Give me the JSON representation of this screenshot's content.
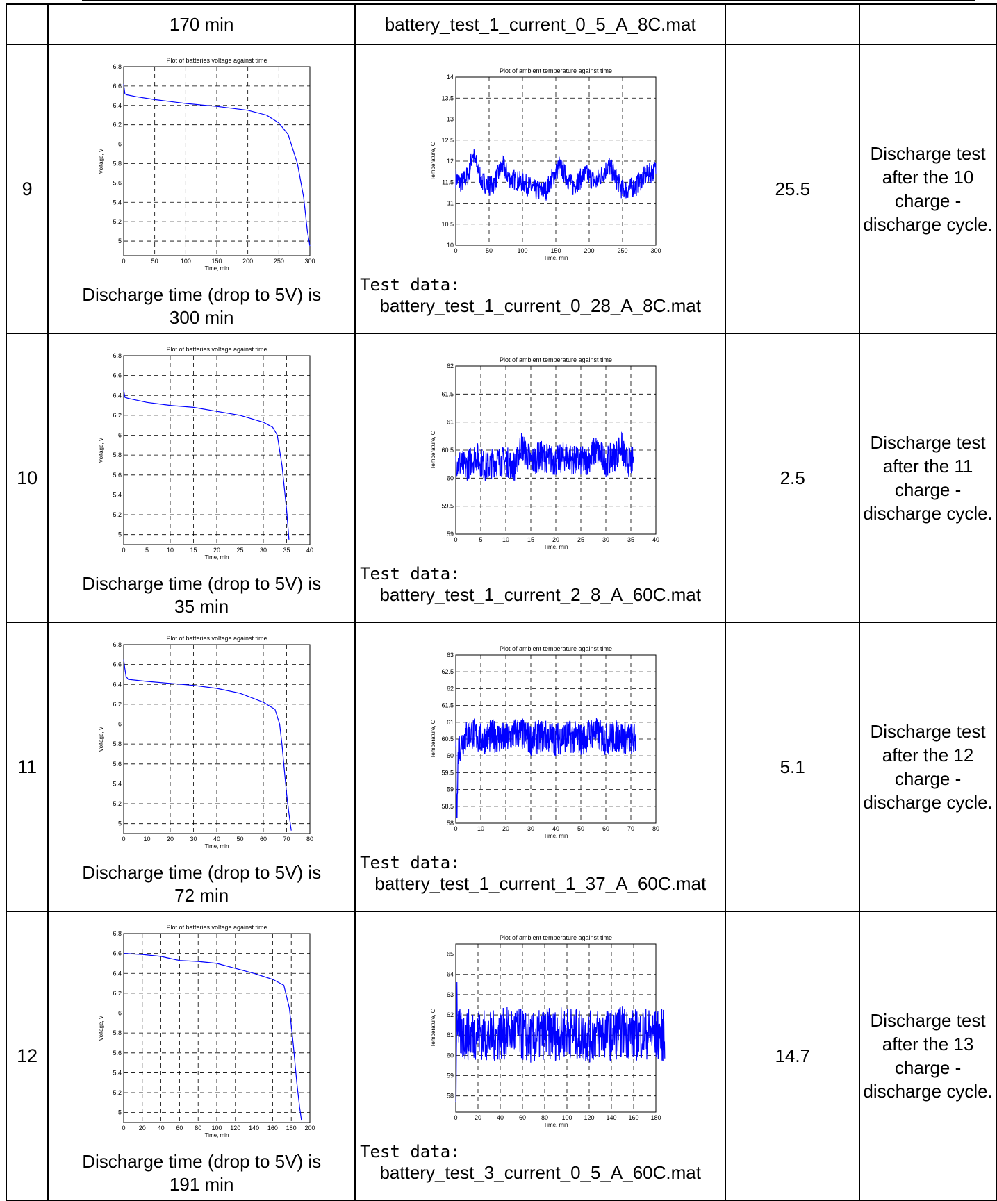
{
  "top_row": {
    "discharge_caption": "170 min",
    "test_file": "battery_test_1_current_0_5_A_8C.mat"
  },
  "rows": [
    {
      "number": "9",
      "voltage_chart": {
        "title": "Plot of batteries voltage against time",
        "xlabel": "Time, min",
        "ylabel": "Voltage, V",
        "xticks": [
          "0",
          "50",
          "100",
          "150",
          "200",
          "250",
          "300"
        ],
        "yticks": [
          "5",
          "5.2",
          "5.4",
          "5.6",
          "5.8",
          "6",
          "6.2",
          "6.4",
          "6.6",
          "6.8"
        ]
      },
      "discharge_label": "Discharge time (drop to 5V) is",
      "discharge_value": "300 min",
      "temp_chart": {
        "title": "Plot of ambient temperature against time",
        "xlabel": "Time, min",
        "ylabel": "Temperature, C",
        "xticks": [
          "0",
          "50",
          "100",
          "150",
          "200",
          "250",
          "300"
        ],
        "yticks": [
          "10",
          "10.5",
          "11",
          "11.5",
          "12",
          "12.5",
          "13",
          "13.5",
          "14"
        ]
      },
      "test_data_label": "Test data:",
      "test_file": "battery_test_1_current_0_28_A_8C.mat",
      "value": "25.5",
      "note": "Discharge test after the 10 charge - discharge cycle."
    },
    {
      "number": "10",
      "voltage_chart": {
        "title": "Plot of batteries voltage against time",
        "xlabel": "Time, min",
        "ylabel": "Voltage, V",
        "xticks": [
          "0",
          "5",
          "10",
          "15",
          "20",
          "25",
          "30",
          "35",
          "40"
        ],
        "yticks": [
          "5",
          "5.2",
          "5.4",
          "5.6",
          "5.8",
          "6",
          "6.2",
          "6.4",
          "6.6",
          "6.8"
        ]
      },
      "discharge_label": "Discharge time (drop to 5V) is",
      "discharge_value": "35 min",
      "temp_chart": {
        "title": "Plot of ambient temperature against time",
        "xlabel": "Time, min",
        "ylabel": "Temperature, C",
        "xticks": [
          "0",
          "5",
          "10",
          "15",
          "20",
          "25",
          "30",
          "35",
          "40"
        ],
        "yticks": [
          "59",
          "59.5",
          "60",
          "60.5",
          "61",
          "61.5",
          "62"
        ]
      },
      "test_data_label": "Test data:",
      "test_file": "battery_test_1_current_2_8_A_60C.mat",
      "value": "2.5",
      "note": "Discharge test after the 11 charge - discharge cycle."
    },
    {
      "number": "11",
      "voltage_chart": {
        "title": "Plot of batteries voltage against time",
        "xlabel": "Time, min",
        "ylabel": "Voltage, V",
        "xticks": [
          "0",
          "10",
          "20",
          "30",
          "40",
          "50",
          "60",
          "70",
          "80"
        ],
        "yticks": [
          "5",
          "5.2",
          "5.4",
          "5.6",
          "5.8",
          "6",
          "6.2",
          "6.4",
          "6.6",
          "6.8"
        ]
      },
      "discharge_label": "Discharge time (drop to 5V) is",
      "discharge_value": "72 min",
      "temp_chart": {
        "title": "Plot of ambient temperature against time",
        "xlabel": "Time, min",
        "ylabel": "Temperature, C",
        "xticks": [
          "0",
          "10",
          "20",
          "30",
          "40",
          "50",
          "60",
          "70",
          "80"
        ],
        "yticks": [
          "58",
          "58.5",
          "59",
          "59.5",
          "60",
          "60.5",
          "61",
          "61.5",
          "62",
          "62.5",
          "63"
        ]
      },
      "test_data_label": "Test data:",
      "test_file": "battery_test_1_current_1_37_A_60C.mat",
      "value": "5.1",
      "note": "Discharge test after the 12 charge - discharge cycle."
    },
    {
      "number": "12",
      "voltage_chart": {
        "title": "Plot of batteries voltage against time",
        "xlabel": "Time, min",
        "ylabel": "Voltage, V",
        "xticks": [
          "0",
          "20",
          "40",
          "60",
          "80",
          "100",
          "120",
          "140",
          "160",
          "180",
          "200"
        ],
        "yticks": [
          "5",
          "5.2",
          "5.4",
          "5.6",
          "5.8",
          "6",
          "6.2",
          "6.4",
          "6.6",
          "6.8"
        ]
      },
      "discharge_label": "Discharge time (drop to 5V) is",
      "discharge_value": "191 min",
      "temp_chart": {
        "title": "Plot of ambient temperature against time",
        "xlabel": "Time, min",
        "ylabel": "Temperature, C",
        "xticks": [
          "0",
          "20",
          "40",
          "60",
          "80",
          "100",
          "120",
          "140",
          "160",
          "180"
        ],
        "yticks": [
          "58",
          "59",
          "60",
          "61",
          "62",
          "63",
          "64",
          "65"
        ]
      },
      "test_data_label": "Test data:",
      "test_file": "battery_test_3_current_0_5_A_60C.mat",
      "value": "14.7",
      "note": "Discharge test after the 13 charge - discharge cycle."
    }
  ],
  "chart_data": [
    {
      "type": "line",
      "title": "Plot of batteries voltage against time",
      "xlabel": "Time, min",
      "ylabel": "Voltage, V",
      "xlim": [
        0,
        310
      ],
      "ylim": [
        4.9,
        6.8
      ],
      "x": [
        0,
        2,
        5,
        20,
        50,
        100,
        150,
        200,
        230,
        250,
        265,
        280,
        290,
        296,
        300
      ],
      "values": [
        6.62,
        6.52,
        6.51,
        6.49,
        6.46,
        6.42,
        6.39,
        6.35,
        6.3,
        6.22,
        6.1,
        5.8,
        5.45,
        5.1,
        4.95
      ]
    },
    {
      "type": "line",
      "title": "Plot of ambient temperature against time",
      "xlabel": "Time, min",
      "ylabel": "Temperature, C",
      "xlim": [
        0,
        305
      ],
      "ylim": [
        10,
        14
      ],
      "x": [
        0,
        5,
        10,
        20,
        25,
        40,
        55,
        70,
        80,
        100,
        120,
        135,
        155,
        175,
        195,
        210,
        230,
        250,
        270,
        280,
        300
      ],
      "values": [
        11.6,
        11.5,
        11.5,
        11.7,
        12.2,
        11.5,
        11.4,
        11.9,
        11.6,
        11.5,
        11.3,
        11.3,
        11.9,
        11.4,
        11.7,
        11.5,
        11.9,
        11.3,
        11.4,
        11.6,
        11.8
      ]
    },
    {
      "type": "line",
      "title": "Plot of batteries voltage against time",
      "xlabel": "Time, min",
      "ylabel": "Voltage, V",
      "xlim": [
        0,
        40
      ],
      "ylim": [
        4.9,
        6.8
      ],
      "x": [
        0,
        0.3,
        1,
        5,
        10,
        15,
        20,
        25,
        30,
        32,
        33,
        34,
        35,
        35.5
      ],
      "values": [
        6.45,
        6.38,
        6.37,
        6.33,
        6.3,
        6.28,
        6.24,
        6.2,
        6.13,
        6.08,
        6.0,
        5.7,
        5.25,
        4.95
      ]
    },
    {
      "type": "line",
      "title": "Plot of ambient temperature against time",
      "xlabel": "Time, min",
      "ylabel": "Temperature, C",
      "xlim": [
        0,
        40
      ],
      "ylim": [
        59,
        62
      ],
      "x": [
        0,
        2,
        4,
        6,
        8,
        10,
        12,
        13,
        15,
        17,
        20,
        22,
        24,
        26,
        28,
        30,
        32,
        33,
        34,
        35.5
      ],
      "values": [
        60.3,
        60.2,
        60.4,
        60.2,
        60.3,
        60.3,
        60.2,
        60.6,
        60.3,
        60.4,
        60.3,
        60.4,
        60.3,
        60.3,
        60.5,
        60.3,
        60.4,
        60.6,
        60.3,
        60.3
      ]
    },
    {
      "type": "line",
      "title": "Plot of batteries voltage against time",
      "xlabel": "Time, min",
      "ylabel": "Voltage, V",
      "xlim": [
        0,
        80
      ],
      "ylim": [
        4.9,
        6.8
      ],
      "x": [
        0,
        0.5,
        1,
        2,
        10,
        20,
        30,
        40,
        50,
        60,
        65,
        67,
        68,
        69,
        70,
        71,
        72
      ],
      "values": [
        6.65,
        6.56,
        6.48,
        6.45,
        6.43,
        6.41,
        6.39,
        6.36,
        6.31,
        6.22,
        6.15,
        6.0,
        5.8,
        5.55,
        5.3,
        5.1,
        4.93
      ]
    },
    {
      "type": "line",
      "title": "Plot of ambient temperature against time",
      "xlabel": "Time, min",
      "ylabel": "Temperature, C",
      "xlim": [
        0,
        80
      ],
      "ylim": [
        58,
        63
      ],
      "x": [
        0,
        0.5,
        1,
        3,
        6,
        10,
        15,
        20,
        25,
        30,
        35,
        40,
        45,
        50,
        55,
        60,
        65,
        70,
        72
      ],
      "values": [
        60.5,
        58.2,
        60.2,
        60.5,
        60.7,
        60.5,
        60.6,
        60.5,
        60.7,
        60.5,
        60.6,
        60.5,
        60.6,
        60.5,
        60.7,
        60.5,
        60.6,
        60.5,
        60.5
      ]
    },
    {
      "type": "line",
      "title": "Plot of batteries voltage against time",
      "xlabel": "Time, min",
      "ylabel": "Voltage, V",
      "xlim": [
        0,
        200
      ],
      "ylim": [
        4.9,
        6.8
      ],
      "x": [
        0,
        20,
        40,
        60,
        80,
        100,
        120,
        140,
        160,
        172,
        178,
        182,
        186,
        189,
        191
      ],
      "values": [
        6.6,
        6.59,
        6.57,
        6.53,
        6.52,
        6.5,
        6.45,
        6.4,
        6.34,
        6.28,
        6.05,
        5.7,
        5.3,
        5.05,
        4.92
      ]
    },
    {
      "type": "line",
      "title": "Plot of ambient temperature against time",
      "xlabel": "Time, min",
      "ylabel": "Temperature, C",
      "xlim": [
        0,
        190
      ],
      "ylim": [
        57,
        65.5
      ],
      "x": [
        0,
        1,
        2,
        10,
        20,
        30,
        40,
        50,
        60,
        70,
        80,
        90,
        100,
        110,
        120,
        130,
        140,
        150,
        160,
        170,
        180,
        188
      ],
      "values": [
        57.2,
        63.2,
        61,
        61,
        61.1,
        60.9,
        61,
        61.2,
        61,
        60.8,
        61.1,
        61,
        61.2,
        61,
        60.9,
        61.1,
        61,
        61.2,
        61,
        61.1,
        61,
        61
      ]
    }
  ]
}
